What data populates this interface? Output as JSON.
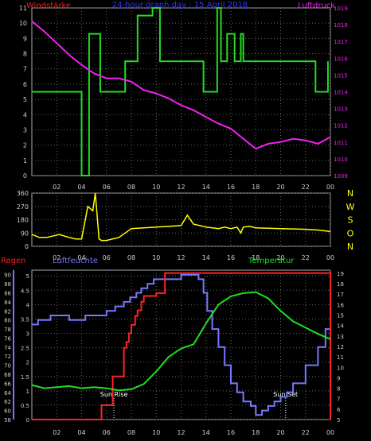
{
  "colors": {
    "background": "#000000",
    "frame": "#aaaaaa",
    "grid": "#666666",
    "wind_speed": "#22dd22",
    "pressure": "#ee22ee",
    "wind_dir": "#ffff00",
    "humidity": "#7777ff",
    "rain": "#ff2222",
    "temperature": "#22dd22",
    "title": "#3333ff",
    "label_wind": "#ee2222",
    "label_pressure": "#ee22ee",
    "label_regen": "#ee2222",
    "label_humidity": "#7777ff",
    "label_temp": "#22dd22",
    "compass": "#ffff00",
    "annotation": "#ffffff"
  },
  "chart_data": [
    {
      "type": "line",
      "title": "24-hour graph day : 15 April 2018",
      "left_label": "Windstärke",
      "right_label": "Luftdruck",
      "x_ticks": [
        "02",
        "04",
        "06",
        "08",
        "10",
        "12",
        "14",
        "16",
        "18",
        "20",
        "22",
        "00"
      ],
      "xlim": [
        0,
        24
      ],
      "y_left_ticks": [
        0,
        1,
        2,
        3,
        4,
        5,
        6,
        7,
        8,
        9,
        10,
        11
      ],
      "y_left_lim": [
        0,
        11
      ],
      "y_right_ticks": [
        1009,
        1010,
        1011,
        1012,
        1013,
        1014,
        1015,
        1016,
        1017,
        1018,
        1019
      ],
      "y_right_lim": [
        1009,
        1019
      ],
      "grid": true,
      "series": [
        {
          "axis": "left",
          "step": true,
          "x": [
            0,
            4,
            4.6,
            5.5,
            7.5,
            8.5,
            9.7,
            10.3,
            13.8,
            14.9,
            15.2,
            15.7,
            16.3,
            16.8,
            17,
            22.8,
            23.8
          ],
          "y": [
            5.5,
            0,
            9.3,
            5.5,
            7.5,
            10.5,
            11,
            7.5,
            5.5,
            11,
            7.5,
            9.3,
            7.5,
            9.3,
            7.5,
            5.5,
            7.5
          ]
        },
        {
          "axis": "right",
          "x": [
            0,
            1,
            2,
            3,
            4,
            5,
            6,
            7,
            8,
            9,
            10,
            11,
            12,
            13,
            14,
            15,
            16,
            17,
            18,
            19,
            20,
            21,
            22,
            23,
            24
          ],
          "y": [
            1018.2,
            1017.6,
            1016.9,
            1016.2,
            1015.6,
            1015.1,
            1014.8,
            1014.8,
            1014.6,
            1014.1,
            1013.9,
            1013.6,
            1013.2,
            1012.9,
            1012.5,
            1012.1,
            1011.8,
            1011.2,
            1010.6,
            1010.9,
            1011.0,
            1011.2,
            1011.1,
            1010.9,
            1011.3
          ]
        }
      ]
    },
    {
      "type": "line",
      "x_ticks": [
        "02",
        "04",
        "06",
        "08",
        "10",
        "12",
        "14",
        "16",
        "18",
        "20",
        "22",
        "00"
      ],
      "xlim": [
        0,
        24
      ],
      "y_left_ticks": [
        0,
        90,
        180,
        270,
        360
      ],
      "y_left_lim": [
        0,
        360
      ],
      "right_labels": [
        "N",
        "W",
        "S",
        "O",
        "N"
      ],
      "grid": true,
      "series": [
        {
          "x": [
            0,
            0.6,
            1.2,
            2.2,
            3.0,
            3.5,
            4.0,
            4.5,
            4.9,
            5.1,
            5.4,
            5.6,
            6.0,
            7.0,
            8.0,
            9.0,
            10.0,
            11.0,
            12.0,
            12.5,
            13.0,
            13.5,
            14.0,
            15.0,
            15.5,
            16.0,
            16.5,
            16.8,
            17.0,
            17.5,
            18.0,
            20.0,
            22.0,
            23.0,
            24.0
          ],
          "y": [
            80,
            60,
            60,
            80,
            60,
            50,
            50,
            270,
            240,
            360,
            50,
            40,
            40,
            60,
            120,
            125,
            130,
            135,
            140,
            210,
            150,
            140,
            130,
            120,
            130,
            120,
            130,
            90,
            130,
            135,
            125,
            120,
            115,
            110,
            100
          ]
        }
      ]
    },
    {
      "type": "line",
      "left_label_1": "Regen",
      "left_label_2": "Luftfeuchte",
      "right_label": "Temperatur",
      "x_ticks": [
        "02",
        "04",
        "06",
        "08",
        "10",
        "12",
        "14",
        "16",
        "18",
        "20",
        "22",
        "00"
      ],
      "xlim": [
        0,
        24
      ],
      "humidity_ticks": [
        58,
        60,
        62,
        64,
        66,
        68,
        70,
        72,
        74,
        76,
        78,
        80,
        82,
        84,
        86,
        88,
        90
      ],
      "humidity_lim": [
        58,
        91
      ],
      "rain_ticks": [
        0,
        0.5,
        1,
        1.5,
        2,
        2.5,
        3,
        3.5,
        4,
        4.5,
        5
      ],
      "rain_lim": [
        0,
        5.2
      ],
      "temp_ticks": [
        5,
        6,
        7,
        8,
        9,
        10,
        11,
        12,
        13,
        14,
        15,
        16,
        17,
        18,
        19
      ],
      "temp_lim": [
        5,
        19.3
      ],
      "grid": true,
      "annotations": [
        {
          "text": "Sun Rise",
          "x": 6.6
        },
        {
          "text": "Sun Set",
          "x": 20.4
        }
      ],
      "series": [
        {
          "name": "Luftfeuchte",
          "axis": "humidity",
          "step": true,
          "x": [
            0,
            0.5,
            1.5,
            3.0,
            4.3,
            5.0,
            6.0,
            6.7,
            7.4,
            7.9,
            8.4,
            8.8,
            9.3,
            9.8,
            12.0,
            13.0,
            13.4,
            13.8,
            14.1,
            14.5,
            15.0,
            15.5,
            16.0,
            16.5,
            17.0,
            17.6,
            18.0,
            18.5,
            19.0,
            19.5,
            20.0,
            20.5,
            21.0,
            22.0,
            23.0,
            23.6,
            24.0
          ],
          "y": [
            79,
            80,
            81,
            80,
            81,
            81,
            82,
            83,
            84,
            85,
            86,
            87,
            88,
            89,
            90,
            90,
            89,
            86,
            82,
            78,
            74,
            70,
            66,
            64,
            62,
            61,
            59,
            60,
            61,
            62,
            63,
            64,
            66,
            70,
            74,
            78,
            81
          ]
        },
        {
          "name": "Regen",
          "axis": "rain",
          "step": true,
          "x": [
            0,
            5.6,
            6.1,
            6.5,
            7.0,
            7.4,
            7.6,
            7.8,
            8.0,
            8.3,
            8.5,
            8.8,
            9.0,
            10.0,
            10.7,
            23.9,
            24.0
          ],
          "y": [
            0,
            0.5,
            0.5,
            1.5,
            1.5,
            2.5,
            2.7,
            3.0,
            3.3,
            3.6,
            3.8,
            4.1,
            4.3,
            4.4,
            5.1,
            5.1,
            0
          ]
        },
        {
          "name": "Temperatur",
          "axis": "temp",
          "x": [
            0,
            1,
            2,
            3,
            4,
            5,
            6,
            7,
            8,
            9,
            10,
            11,
            12,
            13,
            14,
            15,
            16,
            17,
            18,
            19,
            20,
            21,
            22,
            23,
            24
          ],
          "y": [
            8.3,
            8.0,
            8.1,
            8.2,
            8.0,
            8.1,
            8.0,
            7.8,
            7.9,
            8.4,
            9.6,
            11.0,
            11.8,
            12.2,
            14.2,
            16.0,
            16.8,
            17.1,
            17.2,
            16.6,
            15.4,
            14.4,
            13.8,
            13.2,
            12.7
          ]
        }
      ]
    }
  ]
}
